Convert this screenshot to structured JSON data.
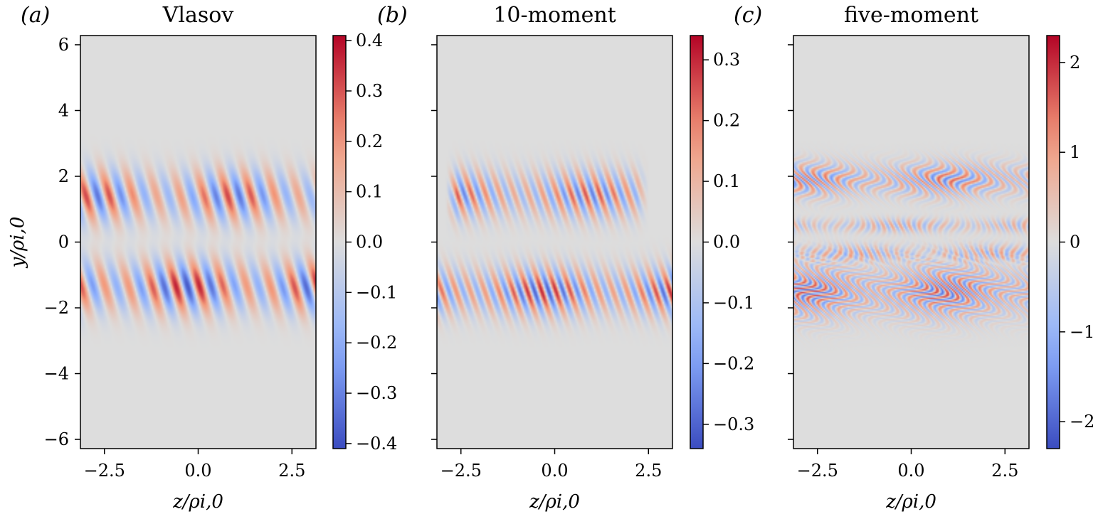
{
  "colors": {
    "background": "#dddddd",
    "negative": "#3b4cc0",
    "positive": "#b40426",
    "axis": "#000000"
  },
  "chart_data": [
    {
      "type": "heatmap",
      "panel_label": "(a)",
      "title": "Vlasov",
      "xlabel": "z/ρi,0",
      "ylabel": "y/ρi,0",
      "xlim": [
        -3.14,
        3.14
      ],
      "ylim": [
        -6.28,
        6.28
      ],
      "xticks": [
        -2.5,
        0.0,
        2.5
      ],
      "xtick_labels": [
        "−2.5",
        "0.0",
        "2.5"
      ],
      "yticks": [
        6,
        4,
        2,
        0,
        -2,
        -4,
        -6
      ],
      "ytick_labels": [
        "6",
        "4",
        "2",
        "0",
        "−2",
        "−4",
        "−6"
      ],
      "colorbar": {
        "colormap": "coolwarm",
        "range": [
          -0.41,
          0.41
        ],
        "ticks": [
          0.4,
          0.3,
          0.2,
          0.1,
          0.0,
          -0.1,
          -0.2,
          -0.3,
          -0.4
        ],
        "tick_labels": [
          "0.4",
          "0.3",
          "0.2",
          "0.1",
          "0.0",
          "−0.1",
          "−0.2",
          "−0.3",
          "−0.4"
        ]
      },
      "bands": [
        {
          "y_center": 1.4,
          "y_width": 0.55,
          "wavelength": 0.63,
          "amplitude": 0.32,
          "phase": 0.0,
          "tilt": 0.25,
          "x_extent": [
            -3.14,
            3.14
          ],
          "wiggle": 0.0
        },
        {
          "y_center": -1.35,
          "y_width": 0.55,
          "wavelength": 0.63,
          "amplitude": 0.38,
          "phase": 1.2,
          "tilt": 0.25,
          "x_extent": [
            -3.14,
            3.14
          ],
          "wiggle": 0.0
        }
      ]
    },
    {
      "type": "heatmap",
      "panel_label": "(b)",
      "title": "10-moment",
      "xlabel": "z/ρi,0",
      "ylabel": "",
      "xlim": [
        -3.14,
        3.14
      ],
      "ylim": [
        -6.28,
        6.28
      ],
      "xticks": [
        -2.5,
        0.0,
        2.5
      ],
      "xtick_labels": [
        "−2.5",
        "0.0",
        "2.5"
      ],
      "yticks": [
        6,
        4,
        2,
        0,
        -2,
        -4,
        -6
      ],
      "ytick_labels": [],
      "colorbar": {
        "colormap": "coolwarm",
        "range": [
          -0.34,
          0.34
        ],
        "ticks": [
          0.3,
          0.2,
          0.1,
          0.0,
          -0.1,
          -0.2,
          -0.3
        ],
        "tick_labels": [
          "0.3",
          "0.2",
          "0.1",
          "0.0",
          "−0.1",
          "−0.2",
          "−0.3"
        ]
      },
      "bands": [
        {
          "y_center": 1.45,
          "y_width": 0.5,
          "wavelength": 0.38,
          "amplitude": 0.25,
          "phase": 0.5,
          "tilt": 0.3,
          "x_extent": [
            -2.6,
            2.2
          ],
          "wiggle": 0.0
        },
        {
          "y_center": -1.5,
          "y_width": 0.5,
          "wavelength": 0.38,
          "amplitude": 0.3,
          "phase": 1.0,
          "tilt": 0.3,
          "x_extent": [
            -3.14,
            3.14
          ],
          "wiggle": 0.0
        }
      ]
    },
    {
      "type": "heatmap",
      "panel_label": "(c)",
      "title": "five-moment",
      "xlabel": "z/ρi,0",
      "ylabel": "",
      "xlim": [
        -3.14,
        3.14
      ],
      "ylim": [
        -6.28,
        6.28
      ],
      "xticks": [
        -2.5,
        0.0,
        2.5
      ],
      "xtick_labels": [
        "−2.5",
        "0.0",
        "2.5"
      ],
      "yticks": [
        6,
        4,
        2,
        0,
        -2,
        -4,
        -6
      ],
      "ytick_labels": [],
      "colorbar": {
        "colormap": "coolwarm",
        "range": [
          -2.3,
          2.3
        ],
        "ticks": [
          2,
          1,
          0,
          -1,
          -2
        ],
        "tick_labels": [
          "2",
          "1",
          "0",
          "−1",
          "−2"
        ]
      },
      "bands": [
        {
          "y_center": 1.9,
          "y_width": 0.35,
          "wavelength": 0.3,
          "amplitude": 1.6,
          "phase": 0.0,
          "tilt": 0.2,
          "x_extent": [
            -3.14,
            3.14
          ],
          "wiggle": 0.25
        },
        {
          "y_center": 0.5,
          "y_width": 0.15,
          "wavelength": 0.28,
          "amplitude": 1.0,
          "phase": 1.0,
          "tilt": 0.0,
          "x_extent": [
            -3.14,
            3.14
          ],
          "wiggle": 0.1
        },
        {
          "y_center": -0.35,
          "y_width": 0.18,
          "wavelength": 0.28,
          "amplitude": 1.1,
          "phase": 2.0,
          "tilt": 0.0,
          "x_extent": [
            -3.14,
            3.14
          ],
          "wiggle": 0.1
        },
        {
          "y_center": -1.5,
          "y_width": 0.55,
          "wavelength": 0.3,
          "amplitude": 1.8,
          "phase": 0.6,
          "tilt": -0.25,
          "x_extent": [
            -3.14,
            3.14
          ],
          "wiggle": 0.35
        }
      ]
    }
  ]
}
